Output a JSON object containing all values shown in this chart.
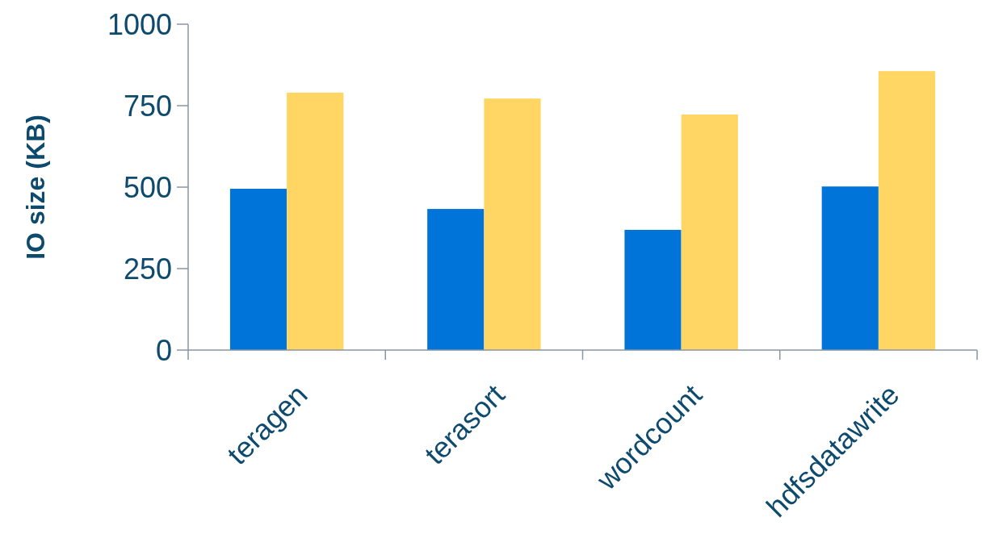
{
  "chart_data": {
    "type": "bar",
    "ylabel": "IO size (KB)",
    "categories": [
      "teragen",
      "terasort",
      "wordcount",
      "hdfsdatawrite"
    ],
    "series": [
      {
        "color": "#0074d9",
        "values": [
          495,
          433,
          369,
          502
        ]
      },
      {
        "color": "#ffd664",
        "values": [
          790,
          772,
          723,
          856
        ]
      }
    ],
    "ylim": [
      0,
      1000
    ],
    "yticks": [
      0,
      250,
      500,
      750,
      1000
    ],
    "grid": false
  }
}
